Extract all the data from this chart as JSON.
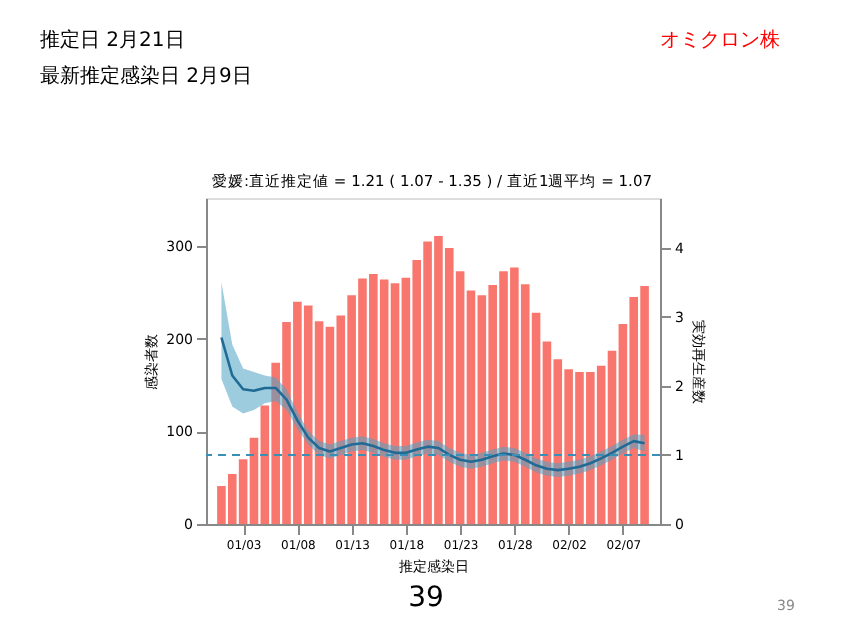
{
  "chart_data": {
    "type": "bar",
    "title": "愛媛:直近推定値 = 1.21 ( 1.07 - 1.35 ) / 直近1週平均 = 1.07",
    "xlabel": "推定感染日",
    "ylabel": "感染者数",
    "y2label": "実効再生産数",
    "categories": [
      null,
      null,
      "01/03",
      null,
      null,
      null,
      null,
      "01/08",
      null,
      null,
      null,
      null,
      "01/13",
      null,
      null,
      null,
      null,
      "01/18",
      null,
      null,
      null,
      null,
      "01/23",
      null,
      null,
      null,
      null,
      "01/28",
      null,
      null,
      null,
      null,
      "02/02",
      null,
      null,
      null,
      null,
      "02/07",
      null,
      null
    ],
    "series": [
      {
        "color": "#f8766d",
        "values": [
          41,
          54,
          70,
          93,
          128,
          174,
          218,
          240,
          236,
          219,
          213,
          225,
          247,
          265,
          270,
          264,
          260,
          266,
          285,
          305,
          311,
          298,
          273,
          252,
          247,
          258,
          273,
          277,
          259,
          228,
          197,
          178,
          167,
          164,
          164,
          171,
          187,
          216,
          245,
          257
        ]
      },
      {
        "type": "line",
        "axis": "y2",
        "color": "#1f6b96",
        "values": [
          2.7,
          2.15,
          1.95,
          1.93,
          1.97,
          1.97,
          1.8,
          1.5,
          1.25,
          1.1,
          1.05,
          1.1,
          1.15,
          1.17,
          1.13,
          1.07,
          1.03,
          1.03,
          1.08,
          1.12,
          1.1,
          1.0,
          0.93,
          0.9,
          0.93,
          0.98,
          1.02,
          1.0,
          0.93,
          0.85,
          0.8,
          0.78,
          0.8,
          0.83,
          0.88,
          0.95,
          1.03,
          1.12,
          1.2,
          1.17
        ],
        "lower": [
          2.1,
          1.7,
          1.6,
          1.65,
          1.75,
          1.78,
          1.65,
          1.38,
          1.15,
          1.0,
          0.95,
          1.0,
          1.05,
          1.07,
          1.03,
          0.97,
          0.93,
          0.93,
          0.98,
          1.02,
          1.0,
          0.9,
          0.83,
          0.8,
          0.83,
          0.88,
          0.92,
          0.9,
          0.83,
          0.75,
          0.7,
          0.68,
          0.7,
          0.73,
          0.78,
          0.85,
          0.93,
          1.02,
          1.1,
          1.05
        ],
        "upper": [
          3.5,
          2.6,
          2.25,
          2.2,
          2.15,
          2.12,
          1.95,
          1.62,
          1.35,
          1.2,
          1.15,
          1.2,
          1.25,
          1.27,
          1.23,
          1.17,
          1.13,
          1.13,
          1.18,
          1.22,
          1.2,
          1.1,
          1.03,
          1.0,
          1.03,
          1.08,
          1.12,
          1.1,
          1.03,
          0.95,
          0.9,
          0.88,
          0.9,
          0.93,
          0.98,
          1.05,
          1.13,
          1.22,
          1.3,
          1.29
        ]
      }
    ],
    "ylim": [
      0,
      352
    ],
    "yticks": [
      0,
      100,
      200,
      300
    ],
    "y2lim": [
      0,
      4.72
    ],
    "y2ticks": [
      0,
      1,
      2,
      3,
      4
    ],
    "ref_lines": [
      {
        "axis": "y2",
        "value": 1,
        "color": "#3a8fb7",
        "line_style": "dashed"
      }
    ],
    "grid": false,
    "annotations": [
      "推定日  2月21日",
      "最新推定感染日  2月9日",
      "オミクロン株",
      "39",
      "39"
    ]
  }
}
